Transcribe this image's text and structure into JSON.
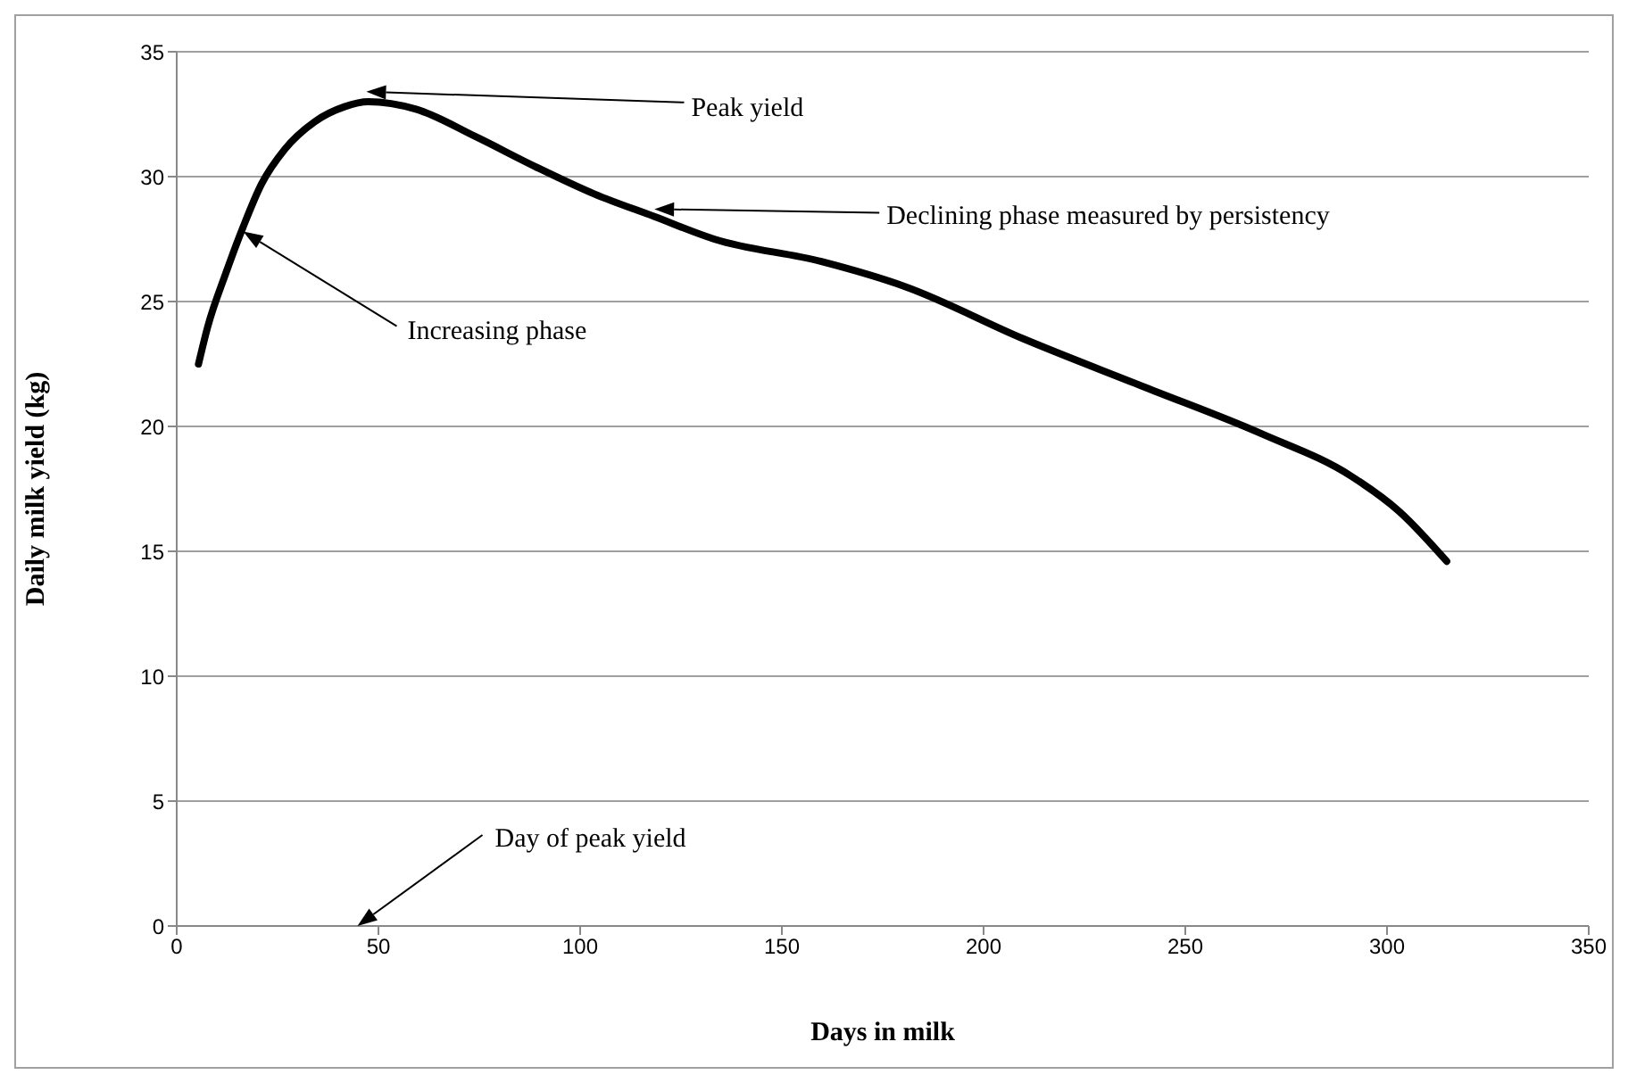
{
  "chart_data": {
    "type": "line",
    "xlabel": "Days in milk",
    "ylabel": "Daily milk  yield (kg)",
    "xlim": [
      0,
      350
    ],
    "xticks": [
      0,
      50,
      100,
      150,
      200,
      250,
      300,
      350
    ],
    "ylim": [
      0,
      35
    ],
    "yticks": [
      0,
      5,
      10,
      15,
      20,
      25,
      30,
      35
    ],
    "grid": "y",
    "marker": "none",
    "line_style": "solid",
    "series": [
      {
        "color": "#000000",
        "x": [
          5.4,
          7.7,
          12.1,
          16.5,
          21,
          26.8,
          34.2,
          41.6,
          47.5,
          59.3,
          74.1,
          88.9,
          103.6,
          118.4,
          133.2,
          159.8,
          180.5,
          210,
          239.5,
          269,
          291.2,
          303,
          314.8
        ],
        "values": [
          22.5,
          24.0,
          26.1,
          28.0,
          29.7,
          31.1,
          32.2,
          32.8,
          33.0,
          32.7,
          31.6,
          30.4,
          29.3,
          28.4,
          27.5,
          26.6,
          25.6,
          23.5,
          21.6,
          19.7,
          18.0,
          16.6,
          14.6
        ]
      }
    ],
    "annotations": [
      "Peak yield",
      "Declining phase measured by persistency",
      "Increasing phase",
      "Day of peak yield"
    ]
  }
}
